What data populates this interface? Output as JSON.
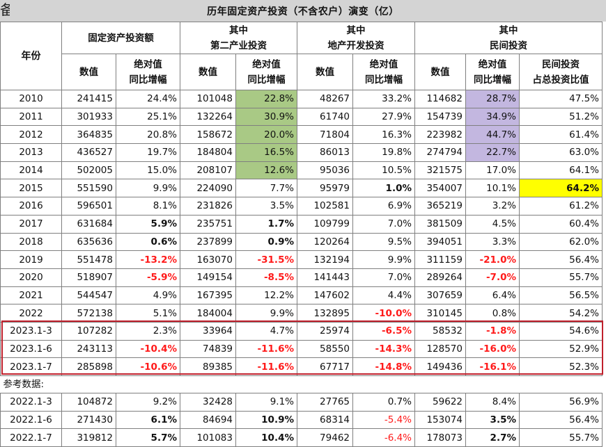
{
  "page": {
    "edge_text": "备",
    "title": "历年固定资产投资（不含农户）演变（亿）"
  },
  "header": {
    "year": "年份",
    "group_total": "固定资产投资额",
    "group_secondary_line1": "其中",
    "group_secondary_line2": "第二产业投资",
    "group_realestate_line1": "其中",
    "group_realestate_line2": "地产开发投资",
    "group_private_line1": "其中",
    "group_private_line2": "民间投资",
    "value": "数值",
    "yoy_line1": "绝对值",
    "yoy_line2": "同比增幅",
    "share_line1": "民间投资",
    "share_line2": "占总投资比值"
  },
  "reference_label": "参考数据:",
  "colors": {
    "green": "#a9c985",
    "purple": "#c3b7e0",
    "yellow": "#ffff00",
    "red": "#ff1a1a",
    "box": "#c0202c",
    "title_bg": "#d4d4d4"
  },
  "rows": [
    [
      "2010",
      "241415",
      "24.4%",
      "101048",
      "22.8%",
      "48267",
      "33.2%",
      "114682",
      "28.7%",
      "47.5%"
    ],
    [
      "2011",
      "301933",
      "25.1%",
      "132264",
      "30.9%",
      "61740",
      "27.9%",
      "154739",
      "34.9%",
      "51.2%"
    ],
    [
      "2012",
      "364835",
      "20.8%",
      "158672",
      "20.0%",
      "71804",
      "16.3%",
      "223982",
      "44.7%",
      "61.4%"
    ],
    [
      "2013",
      "436527",
      "19.7%",
      "184804",
      "16.5%",
      "86013",
      "19.8%",
      "274794",
      "22.7%",
      "63.0%"
    ],
    [
      "2014",
      "502005",
      "15.0%",
      "208107",
      "12.6%",
      "95036",
      "10.5%",
      "321575",
      "17.0%",
      "64.1%"
    ],
    [
      "2015",
      "551590",
      "9.9%",
      "224090",
      "7.7%",
      "95979",
      "1.0%",
      "354007",
      "10.1%",
      "64.2%"
    ],
    [
      "2016",
      "596501",
      "8.1%",
      "231826",
      "3.5%",
      "102581",
      "6.9%",
      "365219",
      "3.2%",
      "61.2%"
    ],
    [
      "2017",
      "631684",
      "5.9%",
      "235751",
      "1.7%",
      "109799",
      "7.0%",
      "381509",
      "4.5%",
      "60.4%"
    ],
    [
      "2018",
      "635636",
      "0.6%",
      "237899",
      "0.9%",
      "120264",
      "9.5%",
      "394051",
      "3.3%",
      "62.0%"
    ],
    [
      "2019",
      "551478",
      "-13.2%",
      "163070",
      "-31.5%",
      "132194",
      "9.9%",
      "311159",
      "-21.0%",
      "56.4%"
    ],
    [
      "2020",
      "518907",
      "-5.9%",
      "149154",
      "-8.5%",
      "141443",
      "7.0%",
      "289264",
      "-7.0%",
      "55.7%"
    ],
    [
      "2021",
      "544547",
      "4.9%",
      "167395",
      "12.2%",
      "147602",
      "4.4%",
      "307659",
      "6.4%",
      "56.5%"
    ],
    [
      "2022",
      "572138",
      "5.1%",
      "184004",
      "9.9%",
      "132895",
      "-10.0%",
      "310145",
      "0.8%",
      "54.2%"
    ],
    [
      "2023.1-3",
      "107282",
      "2.3%",
      "33964",
      "4.7%",
      "25974",
      "-6.5%",
      "58532",
      "-1.8%",
      "54.6%"
    ],
    [
      "2023.1-6",
      "243113",
      "-10.4%",
      "74839",
      "-11.6%",
      "58550",
      "-14.3%",
      "128570",
      "-16.0%",
      "52.9%"
    ],
    [
      "2023.1-7",
      "285898",
      "-10.6%",
      "89385",
      "-11.6%",
      "67717",
      "-14.8%",
      "149436",
      "-16.1%",
      "52.3%"
    ],
    [
      "2022.1-3",
      "104872",
      "9.2%",
      "32428",
      "9.1%",
      "27765",
      "0.7%",
      "59622",
      "8.4%",
      "56.9%"
    ],
    [
      "2022.1-6",
      "271430",
      "6.1%",
      "84694",
      "10.9%",
      "68314",
      "-5.4%",
      "153074",
      "3.5%",
      "56.4%"
    ],
    [
      "2022.1-7",
      "319812",
      "5.7%",
      "101083",
      "10.4%",
      "79462",
      "-6.4%",
      "178073",
      "2.7%",
      "55.7%"
    ]
  ]
}
